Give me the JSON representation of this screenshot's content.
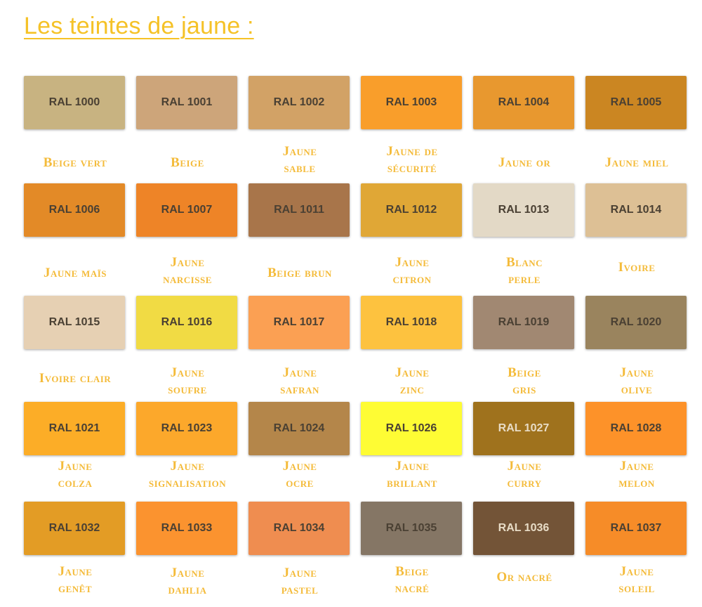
{
  "page": {
    "title": "Les teintes de jaune :",
    "accent_color": "#F5C227"
  },
  "rows": [
    [
      {
        "code": "RAL 1000",
        "color": "#C8B381",
        "label_lines": [
          "Beige vert"
        ]
      },
      {
        "code": "RAL 1001",
        "color": "#CDA57A",
        "label_lines": [
          "Beige"
        ]
      },
      {
        "code": "RAL 1002",
        "color": "#D2A266",
        "label_lines": [
          "Jaune",
          "sable"
        ]
      },
      {
        "code": "RAL 1003",
        "color": "#F99E2B",
        "label_lines": [
          "Jaune de",
          "sécurité"
        ]
      },
      {
        "code": "RAL 1004",
        "color": "#E8982F",
        "label_lines": [
          "Jaune or"
        ]
      },
      {
        "code": "RAL 1005",
        "color": "#CB8622",
        "label_lines": [
          "Jaune miel"
        ]
      }
    ],
    [
      {
        "code": "RAL 1006",
        "color": "#E38A27",
        "label_lines": [
          "Jaune maïs"
        ]
      },
      {
        "code": "RAL 1007",
        "color": "#EE8427",
        "label_lines": [
          "Jaune",
          "narcisse"
        ]
      },
      {
        "code": "RAL 1011",
        "color": "#A8754A",
        "label_lines": [
          "Beige brun"
        ]
      },
      {
        "code": "RAL 1012",
        "color": "#E0A736",
        "label_lines": [
          "Jaune",
          "citron"
        ]
      },
      {
        "code": "RAL 1013",
        "color": "#E3D9C6",
        "label_lines": [
          "Blanc",
          "perle"
        ]
      },
      {
        "code": "RAL 1014",
        "color": "#DDC095",
        "label_lines": [
          "Ivoire"
        ]
      }
    ],
    [
      {
        "code": "RAL 1015",
        "color": "#E6D0B3",
        "label_lines": [
          "Ivoire clair"
        ]
      },
      {
        "code": "RAL 1016",
        "color": "#F1DB44",
        "label_lines": [
          "Jaune",
          "soufre"
        ]
      },
      {
        "code": "RAL 1017",
        "color": "#FBA053",
        "label_lines": [
          "Jaune",
          "safran"
        ]
      },
      {
        "code": "RAL 1018",
        "color": "#FDC23F",
        "label_lines": [
          "Jaune",
          "zinc"
        ]
      },
      {
        "code": "RAL 1019",
        "color": "#A18872",
        "label_lines": [
          "Beige",
          "gris"
        ]
      },
      {
        "code": "RAL 1020",
        "color": "#9A845E",
        "label_lines": [
          "Jaune",
          "olive"
        ]
      }
    ],
    [
      {
        "code": "RAL 1021",
        "color": "#FCAD27",
        "label_lines": [
          "Jaune",
          "colza"
        ]
      },
      {
        "code": "RAL 1023",
        "color": "#FCA82B",
        "label_lines": [
          "Jaune",
          "signalisation"
        ]
      },
      {
        "code": "RAL 1024",
        "color": "#B4864A",
        "label_lines": [
          "Jaune",
          "ocre"
        ]
      },
      {
        "code": "RAL 1026",
        "color": "#FEFC34",
        "label_lines": [
          "Jaune",
          "brillant"
        ]
      },
      {
        "code": "RAL 1027",
        "color": "#9F721D",
        "label_lines": [
          "Jaune",
          "curry"
        ],
        "light_text": true
      },
      {
        "code": "RAL 1028",
        "color": "#FD9229",
        "label_lines": [
          "Jaune",
          "melon"
        ]
      }
    ],
    [
      {
        "code": "RAL 1032",
        "color": "#E39C25",
        "label_lines": [
          "Jaune",
          "genêt"
        ]
      },
      {
        "code": "RAL 1033",
        "color": "#FB932F",
        "label_lines": [
          "Jaune",
          "dahlia"
        ]
      },
      {
        "code": "RAL 1034",
        "color": "#EF8D50",
        "label_lines": [
          "Jaune",
          "pastel"
        ]
      },
      {
        "code": "RAL 1035",
        "color": "#857665",
        "label_lines": [
          "Beige",
          "nacré"
        ]
      },
      {
        "code": "RAL 1036",
        "color": "#735437",
        "label_lines": [
          "Or nacré"
        ],
        "light_text": true
      },
      {
        "code": "RAL 1037",
        "color": "#F68C28",
        "label_lines": [
          "Jaune",
          "soleil"
        ]
      }
    ]
  ]
}
